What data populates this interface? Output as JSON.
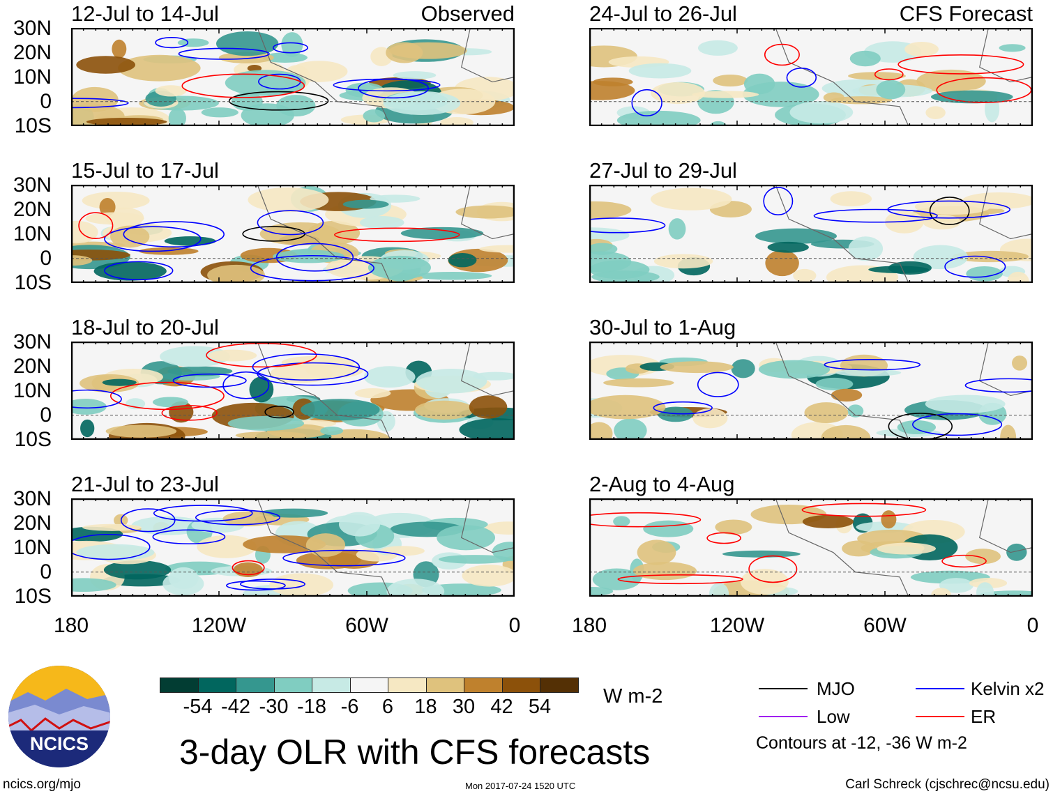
{
  "panels": [
    {
      "title": "12-Jul to 14-Jul",
      "label": "Observed"
    },
    {
      "title": "24-Jul to 26-Jul",
      "label": "CFS Forecast"
    },
    {
      "title": "15-Jul to 17-Jul",
      "label": ""
    },
    {
      "title": "27-Jul to 29-Jul",
      "label": ""
    },
    {
      "title": "18-Jul to 20-Jul",
      "label": ""
    },
    {
      "title": "30-Jul to 1-Aug",
      "label": ""
    },
    {
      "title": "21-Jul to 23-Jul",
      "label": ""
    },
    {
      "title": "2-Aug to 4-Aug",
      "label": ""
    }
  ],
  "lat_labels": [
    "30N",
    "20N",
    "10N",
    "0",
    "10S"
  ],
  "lon_labels": [
    "180",
    "120W",
    "60W",
    "0"
  ],
  "colorbar": {
    "levels": [
      "-54",
      "-42",
      "-30",
      "-18",
      "-6",
      "6",
      "18",
      "30",
      "42",
      "54"
    ],
    "colors": [
      "#023d33",
      "#01665e",
      "#35978f",
      "#80cdc1",
      "#c7eae5",
      "#f5f5f5",
      "#f6e8c3",
      "#dfc27d",
      "#bf812d",
      "#8c510a",
      "#543005"
    ],
    "units": "W m-2"
  },
  "legend": {
    "items": [
      {
        "label": "MJO",
        "color": "#000000"
      },
      {
        "label": "Kelvin x2",
        "color": "#0000ff"
      },
      {
        "label": "Low",
        "color": "#a020f0"
      },
      {
        "label": "ER",
        "color": "#ff0000"
      }
    ],
    "note": "Contours at -12, -36 W m-2"
  },
  "title": "3-day OLR with CFS forecasts",
  "logo_text": "NCICS",
  "footer": {
    "left": "ncics.org/mjo",
    "center": "Mon 2017-07-24 1520 UTC",
    "right": "Carl Schreck (cjschrec@ncsu.edu)"
  }
}
